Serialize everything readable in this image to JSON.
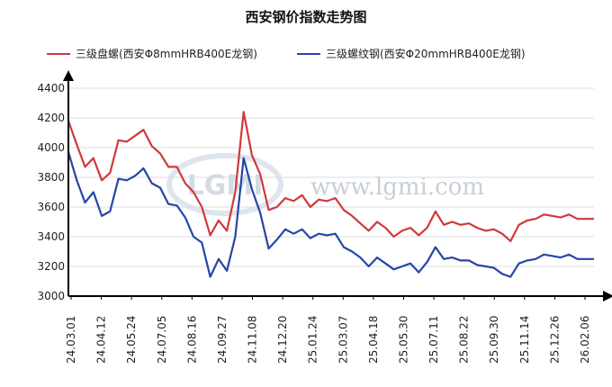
{
  "chart_data": {
    "type": "line",
    "title": "西安钢价指数走势图",
    "xlabel": "",
    "ylabel": "",
    "ylim": [
      3000,
      4400
    ],
    "yticks": [
      3000,
      3200,
      3400,
      3600,
      3800,
      4000,
      4200,
      4400
    ],
    "grid": true,
    "legend": "top",
    "watermark": {
      "logo": "LGMI",
      "url": "www.lgmi.com"
    },
    "x_labels": [
      "24.03.01",
      "24.04.12",
      "24.05.24",
      "24.07.05",
      "24.08.16",
      "24.09.27",
      "24.11.08",
      "24.12.20",
      "25.01.24",
      "25.03.07",
      "25.04.18",
      "25.05.30",
      "25.07.11",
      "25.08.22",
      "25.09.30",
      "25.11.14",
      "25.12.26",
      "26.02.06"
    ],
    "series": [
      {
        "name": "三级盘螺(西安Φ8mmHRB400E龙钢)",
        "color": "#d0393b",
        "values": [
          4180,
          4020,
          3870,
          3930,
          3780,
          3830,
          4050,
          4040,
          4080,
          4120,
          4010,
          3960,
          3870,
          3870,
          3760,
          3700,
          3600,
          3410,
          3510,
          3440,
          3700,
          4240,
          3950,
          3820,
          3580,
          3600,
          3660,
          3640,
          3680,
          3600,
          3650,
          3640,
          3660,
          3580,
          3540,
          3490,
          3440,
          3500,
          3460,
          3400,
          3440,
          3460,
          3410,
          3460,
          3570,
          3480,
          3500,
          3480,
          3490,
          3460,
          3440,
          3450,
          3420,
          3370,
          3480,
          3510,
          3520,
          3550,
          3540,
          3530,
          3550,
          3520,
          3520,
          3520
        ]
      },
      {
        "name": "三级螺纹钢(西安Φ20mmHRB400E龙钢)",
        "color": "#2546a8",
        "values": [
          3970,
          3780,
          3630,
          3700,
          3540,
          3570,
          3790,
          3780,
          3810,
          3860,
          3760,
          3730,
          3620,
          3610,
          3530,
          3400,
          3360,
          3130,
          3250,
          3170,
          3400,
          3930,
          3720,
          3560,
          3320,
          3380,
          3450,
          3420,
          3450,
          3390,
          3420,
          3410,
          3420,
          3330,
          3300,
          3260,
          3200,
          3260,
          3220,
          3180,
          3200,
          3220,
          3160,
          3230,
          3330,
          3250,
          3260,
          3240,
          3240,
          3210,
          3200,
          3190,
          3150,
          3130,
          3220,
          3240,
          3250,
          3280,
          3270,
          3260,
          3280,
          3250,
          3250,
          3250
        ]
      }
    ]
  }
}
